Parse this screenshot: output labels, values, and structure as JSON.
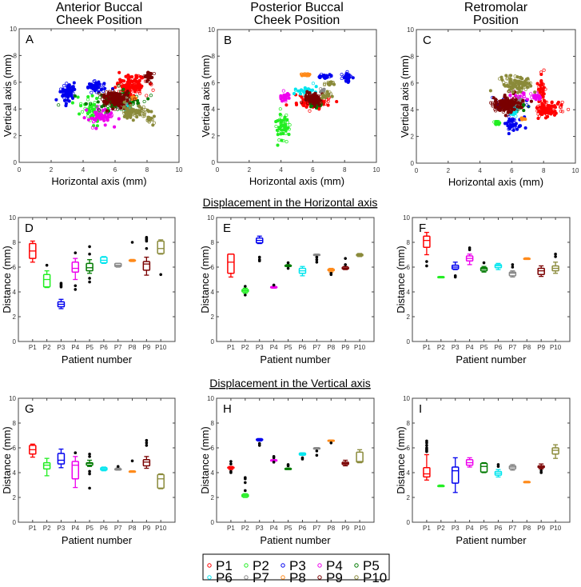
{
  "colors": {
    "P1": "#ff0000",
    "P2": "#22ee22",
    "P3": "#0000ee",
    "P4": "#ee00ee",
    "P5": "#007a00",
    "P6": "#00e5ee",
    "P7": "#888888",
    "P8": "#ff8a1a",
    "P9": "#7a0000",
    "P10": "#8a8a3a"
  },
  "legend": [
    "P1",
    "P2",
    "P3",
    "P4",
    "P5",
    "P6",
    "P7",
    "P8",
    "P9",
    "P10"
  ],
  "row_titles": {
    "horizontal": "Displacement in the Horizontal axis",
    "vertical": "Displacement in the Vertical axis"
  },
  "chart_data": [
    {
      "type": "scatter",
      "panel": "A",
      "title": [
        "Anterior Buccal",
        "Cheek Position"
      ],
      "xlabel": "Horizontal axis (mm)",
      "ylabel": "Vertical axis (mm)",
      "xlim": [
        0,
        10
      ],
      "ylim": [
        0,
        10
      ],
      "ticks": [
        0,
        2,
        4,
        6,
        8,
        10
      ],
      "clusters": [
        {
          "p": "P1",
          "x": 7.0,
          "y": 5.8,
          "sx": 0.6,
          "sy": 0.45,
          "n": 130
        },
        {
          "p": "P2",
          "x": 4.6,
          "y": 3.9,
          "sx": 0.45,
          "sy": 0.6,
          "n": 60
        },
        {
          "p": "P3",
          "x": 3.0,
          "y": 5.3,
          "sx": 0.25,
          "sy": 0.5,
          "n": 70
        },
        {
          "p": "P3",
          "x": 4.8,
          "y": 5.6,
          "sx": 0.4,
          "sy": 0.3,
          "n": 50
        },
        {
          "p": "P4",
          "x": 5.1,
          "y": 3.5,
          "sx": 0.6,
          "sy": 0.4,
          "n": 60
        },
        {
          "p": "P5",
          "x": 6.0,
          "y": 4.6,
          "sx": 1.1,
          "sy": 0.45,
          "n": 110
        },
        {
          "p": "P6",
          "x": 6.7,
          "y": 4.1,
          "sx": 0.2,
          "sy": 0.15,
          "n": 15
        },
        {
          "p": "P7",
          "x": 6.4,
          "y": 4.2,
          "sx": 0.2,
          "sy": 0.15,
          "n": 10
        },
        {
          "p": "P8",
          "x": 7.2,
          "y": 4.8,
          "sx": 0.1,
          "sy": 0.1,
          "n": 8
        },
        {
          "p": "P9",
          "x": 6.0,
          "y": 4.8,
          "sx": 0.55,
          "sy": 0.35,
          "n": 150
        },
        {
          "p": "P9",
          "x": 8.1,
          "y": 6.4,
          "sx": 0.2,
          "sy": 0.3,
          "n": 30
        },
        {
          "p": "P10",
          "x": 7.2,
          "y": 3.8,
          "sx": 0.5,
          "sy": 0.25,
          "n": 80
        },
        {
          "p": "P10",
          "x": 8.1,
          "y": 3.2,
          "sx": 0.2,
          "sy": 0.3,
          "n": 20
        }
      ]
    },
    {
      "type": "scatter",
      "panel": "B",
      "title": [
        "Posterior Buccal",
        "Cheek Position"
      ],
      "xlabel": "Horizontal axis (mm)",
      "ylabel": "Vertical axis (mm)",
      "xlim": [
        0,
        10
      ],
      "ylim": [
        0,
        10
      ],
      "ticks": [
        0,
        2,
        4,
        6,
        8,
        10
      ],
      "clusters": [
        {
          "p": "P1",
          "x": 6.1,
          "y": 4.5,
          "sx": 0.7,
          "sy": 0.3,
          "n": 80
        },
        {
          "p": "P2",
          "x": 4.1,
          "y": 2.7,
          "sx": 0.3,
          "sy": 0.6,
          "n": 60
        },
        {
          "p": "P3",
          "x": 6.8,
          "y": 6.45,
          "sx": 0.3,
          "sy": 0.1,
          "n": 30
        },
        {
          "p": "P3",
          "x": 8.2,
          "y": 6.4,
          "sx": 0.2,
          "sy": 0.3,
          "n": 30
        },
        {
          "p": "P4",
          "x": 4.3,
          "y": 5.0,
          "sx": 0.15,
          "sy": 0.2,
          "n": 30
        },
        {
          "p": "P5",
          "x": 6.2,
          "y": 4.3,
          "sx": 0.2,
          "sy": 0.1,
          "n": 25
        },
        {
          "p": "P6",
          "x": 5.6,
          "y": 5.4,
          "sx": 0.4,
          "sy": 0.2,
          "n": 35
        },
        {
          "p": "P7",
          "x": 6.6,
          "y": 5.4,
          "sx": 0.1,
          "sy": 0.1,
          "n": 8
        },
        {
          "p": "P8",
          "x": 5.5,
          "y": 6.6,
          "sx": 0.2,
          "sy": 0.05,
          "n": 25
        },
        {
          "p": "P9",
          "x": 6.0,
          "y": 4.75,
          "sx": 0.3,
          "sy": 0.25,
          "n": 100
        },
        {
          "p": "P10",
          "x": 7.0,
          "y": 5.95,
          "sx": 0.15,
          "sy": 0.1,
          "n": 20
        },
        {
          "p": "P10",
          "x": 6.9,
          "y": 5.0,
          "sx": 0.2,
          "sy": 0.2,
          "n": 15
        }
      ]
    },
    {
      "type": "scatter",
      "panel": "C",
      "title": [
        "Retromolar",
        "Position"
      ],
      "xlabel": "Horizontal axis (mm)",
      "ylabel": "Vertical axis (mm)",
      "xlim": [
        0,
        10
      ],
      "ylim": [
        0,
        10
      ],
      "ticks": [
        0,
        2,
        4,
        6,
        8,
        10
      ],
      "clusters": [
        {
          "p": "P1",
          "x": 8.3,
          "y": 4.0,
          "sx": 0.5,
          "sy": 0.4,
          "n": 100
        },
        {
          "p": "P1",
          "x": 7.9,
          "y": 5.6,
          "sx": 0.15,
          "sy": 0.6,
          "n": 40
        },
        {
          "p": "P2",
          "x": 5.1,
          "y": 3.0,
          "sx": 0.1,
          "sy": 0.1,
          "n": 20
        },
        {
          "p": "P3",
          "x": 5.8,
          "y": 4.4,
          "sx": 0.6,
          "sy": 0.3,
          "n": 60
        },
        {
          "p": "P3",
          "x": 6.1,
          "y": 2.9,
          "sx": 0.35,
          "sy": 0.4,
          "n": 50
        },
        {
          "p": "P4",
          "x": 7.5,
          "y": 5.0,
          "sx": 0.2,
          "sy": 0.2,
          "n": 25
        },
        {
          "p": "P4",
          "x": 6.4,
          "y": 4.9,
          "sx": 0.3,
          "sy": 0.3,
          "n": 30
        },
        {
          "p": "P5",
          "x": 6.5,
          "y": 4.3,
          "sx": 0.3,
          "sy": 0.2,
          "n": 25
        },
        {
          "p": "P6",
          "x": 6.1,
          "y": 3.9,
          "sx": 0.15,
          "sy": 0.3,
          "n": 20
        },
        {
          "p": "P7",
          "x": 6.3,
          "y": 4.6,
          "sx": 0.3,
          "sy": 0.2,
          "n": 20
        },
        {
          "p": "P8",
          "x": 6.7,
          "y": 3.3,
          "sx": 0.1,
          "sy": 0.05,
          "n": 10
        },
        {
          "p": "P9",
          "x": 5.7,
          "y": 4.4,
          "sx": 0.5,
          "sy": 0.35,
          "n": 180
        },
        {
          "p": "P10",
          "x": 6.3,
          "y": 5.9,
          "sx": 0.6,
          "sy": 0.35,
          "n": 110
        }
      ]
    },
    {
      "type": "box",
      "panel": "D",
      "xlabel": "Patient number",
      "ylabel": "Distance (mm)",
      "ylim": [
        0,
        10
      ],
      "ticks": [
        0,
        2,
        4,
        6,
        8,
        10
      ],
      "boxes": [
        [
          6.4,
          6.7,
          7.3,
          7.9,
          8.1,
          []
        ],
        [
          4.35,
          4.4,
          5.0,
          5.4,
          5.7,
          [
            6.15
          ]
        ],
        [
          2.65,
          2.8,
          3.0,
          3.2,
          3.4,
          [
            4.4,
            4.5,
            4.6,
            4.7
          ]
        ],
        [
          5.0,
          5.6,
          5.9,
          6.4,
          6.7,
          [
            4.2,
            4.5,
            7.15
          ]
        ],
        [
          5.5,
          5.7,
          5.95,
          6.3,
          6.6,
          [
            4.8,
            5.1,
            7.05,
            7.65
          ]
        ],
        [
          6.3,
          6.35,
          6.55,
          6.8,
          6.85,
          []
        ],
        [
          6.0,
          6.05,
          6.15,
          6.3,
          6.3,
          []
        ],
        [
          6.45,
          6.48,
          6.52,
          6.58,
          6.62,
          [
            8.0
          ]
        ],
        [
          5.35,
          5.75,
          6.25,
          6.45,
          6.8,
          [
            7.5,
            8.1,
            8.2,
            8.3,
            8.4
          ]
        ],
        [
          7.05,
          7.1,
          7.5,
          8.1,
          8.2,
          [
            5.4
          ]
        ]
      ]
    },
    {
      "type": "box",
      "panel": "E",
      "xlabel": "Patient number",
      "ylabel": "Distance (mm)",
      "ylim": [
        0,
        10
      ],
      "ticks": [
        0,
        2,
        4,
        6,
        8,
        10
      ],
      "boxes": [
        [
          5.2,
          5.5,
          6.4,
          7.05,
          7.05,
          []
        ],
        [
          3.9,
          4.0,
          4.1,
          4.2,
          4.3,
          [
            3.75,
            4.45
          ]
        ],
        [
          7.9,
          7.95,
          8.15,
          8.35,
          8.5,
          [
            6.5,
            6.6,
            6.8
          ]
        ],
        [
          4.3,
          4.35,
          4.37,
          4.42,
          4.45,
          [
            4.55
          ]
        ],
        [
          6.05,
          6.1,
          6.12,
          6.15,
          6.2,
          [
            5.9,
            6.35
          ]
        ],
        [
          5.3,
          5.5,
          5.7,
          5.9,
          6.05,
          []
        ],
        [
          6.95,
          6.98,
          7.0,
          7.03,
          7.05,
          [
            6.4,
            6.6,
            6.8
          ]
        ],
        [
          5.6,
          5.7,
          5.78,
          5.85,
          5.9,
          [
            5.4,
            5.5
          ]
        ],
        [
          5.8,
          5.85,
          5.9,
          6.0,
          6.05,
          [
            6.2,
            6.7
          ]
        ],
        [
          6.85,
          6.9,
          6.98,
          7.05,
          7.1,
          []
        ]
      ]
    },
    {
      "type": "box",
      "panel": "F",
      "xlabel": "Patient number",
      "ylabel": "Distance (mm)",
      "ylim": [
        0,
        10
      ],
      "ticks": [
        0,
        2,
        4,
        6,
        8,
        10
      ],
      "boxes": [
        [
          7.0,
          7.6,
          8.15,
          8.5,
          8.8,
          [
            6.1,
            6.45
          ]
        ],
        [
          5.15,
          5.17,
          5.2,
          5.23,
          5.25,
          []
        ],
        [
          5.8,
          5.85,
          6.0,
          6.15,
          6.4,
          [
            5.2,
            5.3
          ]
        ],
        [
          6.2,
          6.5,
          6.7,
          6.9,
          7.05,
          [
            7.4,
            7.55
          ]
        ],
        [
          5.6,
          5.7,
          5.85,
          5.95,
          6.05,
          [
            6.35
          ]
        ],
        [
          5.8,
          5.95,
          6.1,
          6.2,
          6.3,
          []
        ],
        [
          5.2,
          5.3,
          5.5,
          5.6,
          5.7,
          [
            6.0,
            6.2
          ]
        ],
        [
          6.65,
          6.67,
          6.7,
          6.72,
          6.75,
          []
        ],
        [
          5.25,
          5.4,
          5.7,
          5.9,
          6.1,
          []
        ],
        [
          5.5,
          5.7,
          5.9,
          6.1,
          6.4,
          [
            6.85,
            7.05
          ]
        ]
      ]
    },
    {
      "type": "box",
      "panel": "G",
      "xlabel": "Patient number",
      "ylabel": "Distance (mm)",
      "ylim": [
        0,
        10
      ],
      "ticks": [
        0,
        2,
        4,
        6,
        8,
        10
      ],
      "boxes": [
        [
          5.25,
          5.5,
          5.85,
          6.2,
          6.3,
          []
        ],
        [
          3.75,
          4.3,
          4.6,
          4.8,
          5.15,
          []
        ],
        [
          4.4,
          4.7,
          5.0,
          5.55,
          5.9,
          []
        ],
        [
          2.8,
          3.5,
          4.6,
          4.9,
          5.3,
          [
            5.6
          ]
        ],
        [
          4.5,
          4.6,
          4.75,
          4.8,
          5.0,
          [
            2.75,
            3.9,
            4.1,
            5.3,
            5.5
          ]
        ],
        [
          4.15,
          4.2,
          4.3,
          4.4,
          4.45,
          []
        ],
        [
          4.2,
          4.22,
          4.28,
          4.32,
          4.38,
          [
            4.5
          ]
        ],
        [
          4.05,
          4.07,
          4.1,
          4.13,
          4.15,
          [
            4.95
          ]
        ],
        [
          4.35,
          4.55,
          4.85,
          5.05,
          5.3,
          [
            6.2,
            6.4,
            6.6
          ]
        ],
        [
          2.7,
          2.75,
          3.5,
          3.85,
          3.9,
          []
        ]
      ]
    },
    {
      "type": "box",
      "panel": "H",
      "xlabel": "Patient number",
      "ylabel": "Distance (mm)",
      "ylim": [
        0,
        10
      ],
      "ticks": [
        0,
        2,
        4,
        6,
        8,
        10
      ],
      "boxes": [
        [
          4.25,
          4.35,
          4.4,
          4.45,
          4.5,
          [
            4.0,
            4.1,
            4.7,
            4.9
          ]
        ],
        [
          2.0,
          2.05,
          2.15,
          2.25,
          2.3,
          [
            2.55,
            3.2,
            3.5,
            3.6
          ]
        ],
        [
          6.55,
          6.6,
          6.65,
          6.72,
          6.75,
          [
            6.2,
            6.35
          ]
        ],
        [
          4.95,
          4.97,
          5.0,
          5.03,
          5.05,
          [
            4.85,
            5.2,
            5.3
          ]
        ],
        [
          4.28,
          4.3,
          4.32,
          4.35,
          4.37,
          [
            4.55,
            4.65
          ]
        ],
        [
          5.4,
          5.42,
          5.5,
          5.58,
          5.6,
          [
            5.1,
            5.2
          ]
        ],
        [
          5.92,
          5.95,
          5.98,
          6.0,
          6.02,
          [
            5.4,
            5.75
          ]
        ],
        [
          6.57,
          6.58,
          6.6,
          6.62,
          6.63,
          [
            6.4
          ]
        ],
        [
          4.55,
          4.65,
          4.75,
          4.85,
          5.0,
          []
        ],
        [
          4.8,
          4.85,
          4.9,
          5.65,
          5.85,
          []
        ]
      ]
    },
    {
      "type": "box",
      "panel": "I",
      "xlabel": "Patient number",
      "ylabel": "Distance (mm)",
      "ylim": [
        0,
        10
      ],
      "ticks": [
        0,
        2,
        4,
        6,
        8,
        10
      ],
      "boxes": [
        [
          3.4,
          3.65,
          3.9,
          4.4,
          5.45,
          [
            5.7,
            5.8,
            5.9,
            6.0,
            6.2,
            6.4,
            6.55
          ]
        ],
        [
          2.88,
          2.9,
          2.93,
          2.97,
          3.0,
          []
        ],
        [
          2.4,
          3.15,
          4.15,
          4.45,
          5.2,
          []
        ],
        [
          4.45,
          4.6,
          4.8,
          5.05,
          5.2,
          []
        ],
        [
          4.0,
          4.05,
          4.5,
          4.75,
          4.8,
          []
        ],
        [
          3.65,
          3.8,
          3.95,
          4.1,
          4.25,
          [
            4.5,
            4.65
          ]
        ],
        [
          4.2,
          4.3,
          4.45,
          4.55,
          4.65,
          []
        ],
        [
          3.25,
          3.26,
          3.27,
          3.28,
          3.3,
          []
        ],
        [
          4.3,
          4.4,
          4.5,
          4.55,
          4.7,
          [
            4.0,
            4.15
          ]
        ],
        [
          5.15,
          5.5,
          5.8,
          6.0,
          6.25,
          []
        ]
      ]
    }
  ]
}
